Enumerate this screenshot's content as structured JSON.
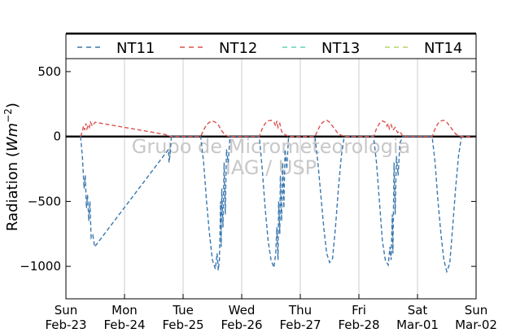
{
  "chart_data": {
    "type": "line",
    "title": "",
    "xlabel": "",
    "ylabel": "Radiation",
    "ylabel_unit": "W m^-2",
    "ylim": [
      -1250,
      600
    ],
    "yticks": [
      500,
      0,
      -500,
      -1000
    ],
    "ytick_labels": [
      "500",
      "0",
      "−500",
      "−1000"
    ],
    "x_range_days": [
      "2014-02-23",
      "2014-03-02"
    ],
    "xticks": [
      {
        "day": "Sun",
        "date": "Feb-23"
      },
      {
        "day": "Mon",
        "date": "Feb-24"
      },
      {
        "day": "Tue",
        "date": "Feb-25"
      },
      {
        "day": "Wed",
        "date": "Feb-26"
      },
      {
        "day": "Thu",
        "date": "Feb-27"
      },
      {
        "day": "Fri",
        "date": "Feb-28"
      },
      {
        "day": "Sat",
        "date": "Mar-01"
      },
      {
        "day": "Sun",
        "date": "Mar-02"
      }
    ],
    "grid": "vertical",
    "legend_position": "top",
    "zero_line": true,
    "watermark": [
      "Grupo de Micrometeorologia",
      "IAG / USP"
    ],
    "series": [
      {
        "name": "NT11",
        "color": "#3a78b0",
        "style": "dashed",
        "points": [
          [
            0.25,
            0
          ],
          [
            0.28,
            -150
          ],
          [
            0.31,
            -400
          ],
          [
            0.33,
            -300
          ],
          [
            0.35,
            -550
          ],
          [
            0.37,
            -450
          ],
          [
            0.39,
            -650
          ],
          [
            0.41,
            -500
          ],
          [
            0.43,
            -780
          ],
          [
            0.46,
            -760
          ],
          [
            0.49,
            -850
          ],
          [
            1.75,
            -100
          ],
          [
            1.76,
            -200
          ],
          [
            1.78,
            -120
          ],
          [
            1.8,
            0
          ],
          [
            2.3,
            0
          ],
          [
            2.35,
            -200
          ],
          [
            2.4,
            -500
          ],
          [
            2.45,
            -750
          ],
          [
            2.5,
            -950
          ],
          [
            2.55,
            -1020
          ],
          [
            2.58,
            -900
          ],
          [
            2.6,
            -1030
          ],
          [
            2.62,
            -950
          ],
          [
            2.64,
            -500
          ],
          [
            2.65,
            -850
          ],
          [
            2.66,
            -400
          ],
          [
            2.68,
            -700
          ],
          [
            2.7,
            -200
          ],
          [
            2.72,
            -600
          ],
          [
            2.74,
            -100
          ],
          [
            2.77,
            -200
          ],
          [
            2.8,
            0
          ],
          [
            3.3,
            0
          ],
          [
            3.35,
            -250
          ],
          [
            3.4,
            -550
          ],
          [
            3.45,
            -800
          ],
          [
            3.5,
            -950
          ],
          [
            3.55,
            -1010
          ],
          [
            3.58,
            -900
          ],
          [
            3.6,
            -700
          ],
          [
            3.62,
            -950
          ],
          [
            3.63,
            -500
          ],
          [
            3.65,
            -750
          ],
          [
            3.66,
            -300
          ],
          [
            3.68,
            -650
          ],
          [
            3.7,
            -200
          ],
          [
            3.72,
            -550
          ],
          [
            3.74,
            -100
          ],
          [
            3.77,
            -250
          ],
          [
            3.8,
            0
          ],
          [
            4.25,
            0
          ],
          [
            4.3,
            -200
          ],
          [
            4.35,
            -450
          ],
          [
            4.4,
            -700
          ],
          [
            4.45,
            -900
          ],
          [
            4.5,
            -970
          ],
          [
            4.55,
            -940
          ],
          [
            4.6,
            -700
          ],
          [
            4.65,
            -400
          ],
          [
            4.7,
            -150
          ],
          [
            4.75,
            0
          ],
          [
            5.25,
            0
          ],
          [
            5.3,
            -200
          ],
          [
            5.35,
            -500
          ],
          [
            5.4,
            -800
          ],
          [
            5.45,
            -950
          ],
          [
            5.5,
            -990
          ],
          [
            5.53,
            -850
          ],
          [
            5.55,
            -950
          ],
          [
            5.57,
            -600
          ],
          [
            5.58,
            -900
          ],
          [
            5.6,
            -200
          ],
          [
            5.62,
            -600
          ],
          [
            5.64,
            -150
          ],
          [
            5.67,
            -300
          ],
          [
            5.7,
            -50
          ],
          [
            5.75,
            0
          ],
          [
            6.25,
            0
          ],
          [
            6.3,
            -200
          ],
          [
            6.35,
            -500
          ],
          [
            6.4,
            -750
          ],
          [
            6.45,
            -950
          ],
          [
            6.5,
            -1040
          ],
          [
            6.55,
            -980
          ],
          [
            6.6,
            -700
          ],
          [
            6.65,
            -400
          ],
          [
            6.7,
            -150
          ],
          [
            6.75,
            0
          ]
        ]
      },
      {
        "name": "NT12",
        "color": "#d9534f",
        "style": "dashed",
        "points": [
          [
            0.25,
            0
          ],
          [
            0.28,
            40
          ],
          [
            0.3,
            80
          ],
          [
            0.32,
            50
          ],
          [
            0.34,
            100
          ],
          [
            0.36,
            60
          ],
          [
            0.38,
            90
          ],
          [
            0.4,
            70
          ],
          [
            0.42,
            110
          ],
          [
            0.45,
            80
          ],
          [
            0.5,
            110
          ],
          [
            1.7,
            15
          ],
          [
            1.75,
            5
          ],
          [
            1.8,
            0
          ],
          [
            2.3,
            0
          ],
          [
            2.35,
            50
          ],
          [
            2.4,
            90
          ],
          [
            2.45,
            110
          ],
          [
            2.5,
            120
          ],
          [
            2.55,
            110
          ],
          [
            2.6,
            90
          ],
          [
            2.65,
            50
          ],
          [
            2.7,
            20
          ],
          [
            2.75,
            5
          ],
          [
            2.8,
            0
          ],
          [
            3.3,
            0
          ],
          [
            3.35,
            60
          ],
          [
            3.4,
            100
          ],
          [
            3.45,
            120
          ],
          [
            3.5,
            125
          ],
          [
            3.55,
            110
          ],
          [
            3.58,
            80
          ],
          [
            3.6,
            120
          ],
          [
            3.62,
            70
          ],
          [
            3.65,
            100
          ],
          [
            3.68,
            40
          ],
          [
            3.72,
            20
          ],
          [
            3.8,
            0
          ],
          [
            4.25,
            0
          ],
          [
            4.3,
            50
          ],
          [
            4.35,
            95
          ],
          [
            4.4,
            115
          ],
          [
            4.45,
            125
          ],
          [
            4.5,
            110
          ],
          [
            4.55,
            80
          ],
          [
            4.6,
            50
          ],
          [
            4.65,
            20
          ],
          [
            4.75,
            0
          ],
          [
            5.25,
            0
          ],
          [
            5.3,
            60
          ],
          [
            5.35,
            100
          ],
          [
            5.4,
            120
          ],
          [
            5.45,
            110
          ],
          [
            5.48,
            80
          ],
          [
            5.5,
            100
          ],
          [
            5.52,
            60
          ],
          [
            5.55,
            90
          ],
          [
            5.58,
            50
          ],
          [
            5.62,
            70
          ],
          [
            5.66,
            30
          ],
          [
            5.7,
            40
          ],
          [
            5.75,
            0
          ],
          [
            6.25,
            0
          ],
          [
            6.3,
            60
          ],
          [
            6.35,
            100
          ],
          [
            6.4,
            120
          ],
          [
            6.45,
            125
          ],
          [
            6.5,
            110
          ],
          [
            6.55,
            80
          ],
          [
            6.6,
            50
          ],
          [
            6.65,
            20
          ],
          [
            6.75,
            0
          ],
          [
            7.0,
            0
          ]
        ]
      },
      {
        "name": "NT13",
        "color": "#5fd3b8",
        "style": "dashed",
        "points": []
      },
      {
        "name": "NT14",
        "color": "#b5d36a",
        "style": "dashed",
        "points": []
      }
    ]
  }
}
